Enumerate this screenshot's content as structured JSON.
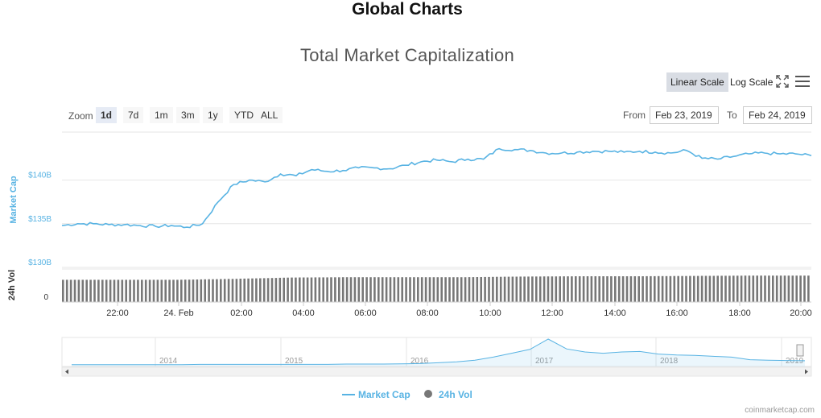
{
  "page": {
    "heading": "Global Charts"
  },
  "toolbar": {
    "linear_label": "Linear Scale",
    "log_label": "Log Scale",
    "zoom_label": "Zoom",
    "zoom_buttons": [
      "1d",
      "7d",
      "1m",
      "3m",
      "1y",
      "YTD",
      "ALL"
    ],
    "zoom_active": "1d",
    "from_label": "From",
    "from_value": "Feb 23, 2019",
    "to_label": "To",
    "to_value": "Feb 24, 2019"
  },
  "credits": "coinmarketcap.com",
  "colors": {
    "market_cap": "#58b3e3",
    "volume": "#777777",
    "accent_active": "#d9dde4"
  },
  "chart_data": {
    "type": "line",
    "title": "Total Market Capitalization",
    "series": [
      {
        "name": "Market Cap",
        "axis": "Market Cap",
        "x": [
          "20:30",
          "21:00",
          "21:30",
          "22:00",
          "22:30",
          "23:00",
          "23:30",
          "24. Feb",
          "00:30",
          "01:00",
          "01:30",
          "02:00",
          "02:30",
          "03:00",
          "03:30",
          "04:00",
          "04:30",
          "05:00",
          "05:30",
          "06:00",
          "06:30",
          "07:00",
          "07:30",
          "08:00",
          "08:30",
          "09:00",
          "09:30",
          "10:00",
          "10:30",
          "11:00",
          "11:30",
          "12:00",
          "12:30",
          "13:00",
          "13:30",
          "14:00",
          "14:30",
          "15:00",
          "15:30",
          "16:00",
          "16:30",
          "17:00",
          "17:30",
          "18:00",
          "18:30",
          "19:00",
          "19:30",
          "20:00",
          "20:10"
        ],
        "values": [
          134.8,
          135.0,
          135.0,
          134.9,
          134.9,
          134.8,
          134.7,
          134.8,
          134.6,
          135.0,
          137.5,
          139.5,
          140.0,
          139.8,
          140.7,
          140.5,
          141.2,
          141.0,
          141.1,
          141.4,
          141.4,
          141.3,
          141.7,
          142.1,
          142.3,
          142.1,
          142.4,
          142.4,
          143.6,
          143.5,
          143.4,
          143.1,
          143.1,
          143.2,
          143.3,
          143.3,
          143.2,
          143.3,
          143.2,
          143.1,
          143.4,
          142.5,
          142.4,
          142.7,
          143.0,
          143.1,
          143.0,
          143.0,
          142.8
        ]
      },
      {
        "name": "24h Vol",
        "axis": "24h Vol",
        "x": [
          "20:30",
          "22:00",
          "24. Feb",
          "02:00",
          "04:00",
          "06:00",
          "08:00",
          "10:00",
          "12:00",
          "14:00",
          "16:00",
          "18:00",
          "20:00",
          "20:10"
        ],
        "values": [
          0.69,
          0.69,
          0.69,
          0.72,
          0.76,
          0.77,
          0.77,
          0.77,
          0.79,
          0.8,
          0.8,
          0.81,
          0.82,
          0.82
        ]
      }
    ],
    "x_ticks": [
      "22:00",
      "24. Feb",
      "02:00",
      "04:00",
      "06:00",
      "08:00",
      "10:00",
      "12:00",
      "14:00",
      "16:00",
      "18:00",
      "20:00"
    ],
    "y_axis": {
      "label": "Market Cap",
      "ticks": [
        "$130B",
        "$135B",
        "$140B"
      ],
      "tick_values": [
        130,
        135,
        140
      ],
      "ylim": [
        130,
        145.5
      ]
    },
    "vol_axis": {
      "label": "24h Vol",
      "ticks": [
        "0"
      ]
    },
    "navigator": {
      "year_labels": [
        "2014",
        "2015",
        "2016",
        "2017",
        "2018",
        "2019"
      ],
      "values": [
        0.01,
        0.01,
        0.01,
        0.01,
        0.01,
        0.01,
        0.01,
        0.02,
        0.02,
        0.02,
        0.02,
        0.02,
        0.02,
        0.02,
        0.02,
        0.03,
        0.03,
        0.03,
        0.04,
        0.05,
        0.08,
        0.12,
        0.18,
        0.3,
        0.45,
        0.6,
        1.0,
        0.62,
        0.5,
        0.45,
        0.5,
        0.52,
        0.42,
        0.38,
        0.37,
        0.33,
        0.3,
        0.2,
        0.18,
        0.17,
        0.16
      ]
    },
    "legend": {
      "placement": "bottom-center",
      "items": [
        "Market Cap",
        "24h Vol"
      ]
    },
    "grid": true
  }
}
